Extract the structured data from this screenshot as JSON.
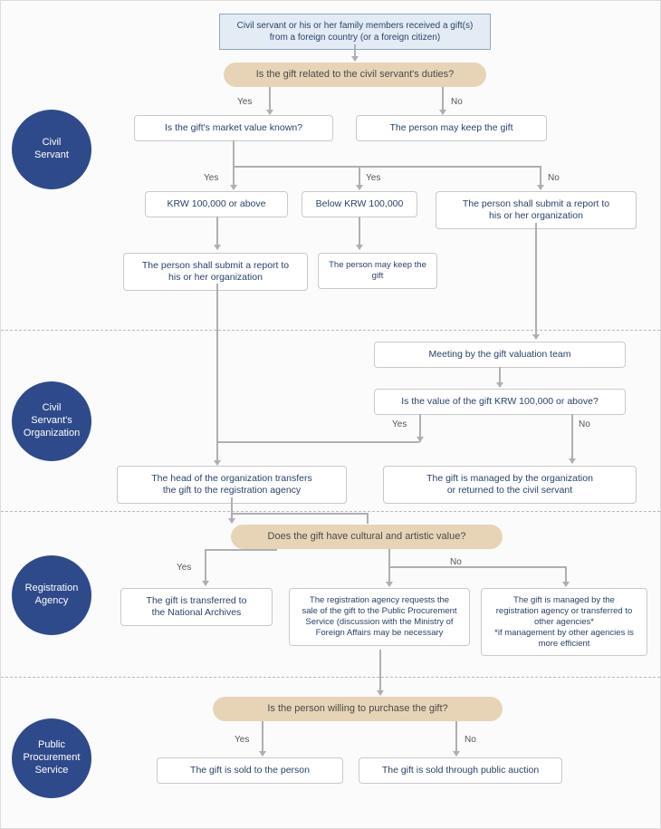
{
  "colors": {
    "circle_bg": "#2f4a8a",
    "decision_bg": "#e7d4b7",
    "start_bg": "#e3ecf5",
    "box_border": "#c9c9c9",
    "text_dark": "#2a4269",
    "arrow": "#b0aeb3"
  },
  "sections": {
    "civil_servant": {
      "label": "Civil\nServant"
    },
    "org": {
      "label": "Civil\nServant's\nOrganization"
    },
    "agency": {
      "label": "Registration\nAgency"
    },
    "pps": {
      "label": "Public\nProcurement\nService"
    }
  },
  "nodes": {
    "start": "Civil servant or his or her family members received a gift(s)\nfrom a foreign country (or a foreign citizen)",
    "d1": "Is the gift related to the civil servant's duties?",
    "d1_yes": "Yes",
    "d1_no": "No",
    "b_keep1": "The person may keep the gift",
    "b_known": "Is the gift's market value known?",
    "k_yes1": "Yes",
    "k_yes2": "Yes",
    "k_no": "No",
    "b_100a": "KRW 100,000 or above",
    "b_100b": "Below KRW 100,000",
    "b_report_unknown": "The person shall submit a report to\nhis or her organization",
    "b_report_known": "The person shall submit a report to\nhis or her organization",
    "b_keep2": "The person may keep the gift",
    "b_meeting": "Meeting by the gift valuation team",
    "d2": "Is the value of the gift KRW 100,000 or above?",
    "d2_yes": "Yes",
    "d2_no": "No",
    "b_transfer": "The head of the organization transfers\nthe gift to the registration agency",
    "b_managed_org": "The gift is managed by the organization\nor returned to the civil servant",
    "d3": "Does the gift have cultural and artistic value?",
    "d3_yes": "Yes",
    "d3_no": "No",
    "b_archives": "The gift is transferred to\nthe National Archives",
    "b_salereq": "The registration agency requests the\nsale of the gift to the Public Procurement\nService (discussion with the Ministry of\nForeign Affairs may be necessary",
    "b_managed_ag": "The gift is managed by the\nregistration agency or transferred to\nother agencies*\n*if management by other agencies is\nmore efficient",
    "d4": "Is the person willing to purchase the gift?",
    "d4_yes": "Yes",
    "d4_no": "No",
    "b_sold_person": "The gift is sold to the person",
    "b_sold_auction": "The gift is sold through public auction"
  }
}
